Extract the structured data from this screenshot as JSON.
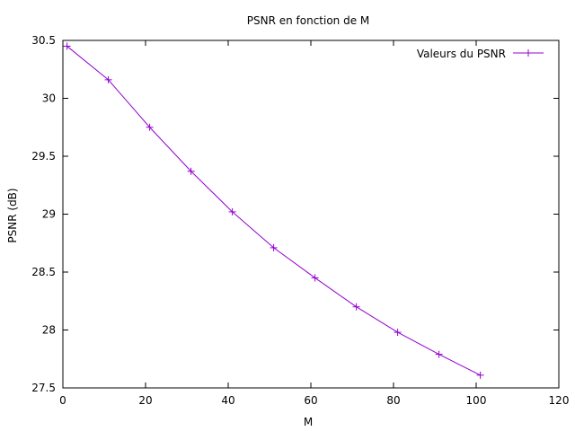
{
  "chart_data": {
    "type": "line",
    "title": "PSNR en fonction de M",
    "xlabel": "M",
    "ylabel": "PSNR (dB)",
    "xlim": [
      0,
      120
    ],
    "ylim": [
      27.5,
      30.5
    ],
    "xticks": [
      0,
      20,
      40,
      60,
      80,
      100,
      120
    ],
    "yticks": [
      27.5,
      28,
      28.5,
      29,
      29.5,
      30,
      30.5
    ],
    "grid": false,
    "legend": "top-right",
    "series": [
      {
        "name": "Valeurs du PSNR",
        "color": "#9400d3",
        "marker": "plus",
        "x": [
          1,
          11,
          21,
          31,
          41,
          51,
          61,
          71,
          81,
          91,
          101
        ],
        "y": [
          30.45,
          30.16,
          29.75,
          29.37,
          29.02,
          28.71,
          28.45,
          28.2,
          27.98,
          27.79,
          27.61
        ]
      }
    ]
  }
}
